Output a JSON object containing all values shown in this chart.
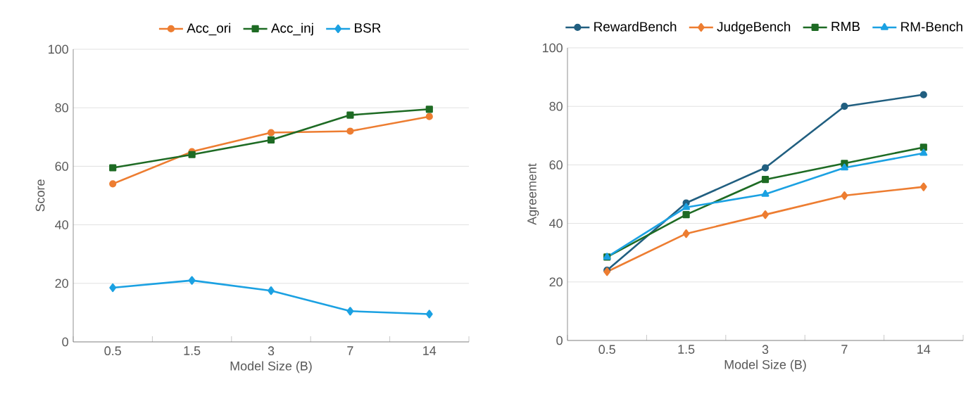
{
  "chart_data": [
    {
      "type": "line",
      "xlabel": "Model Size (B)",
      "ylabel": "Score",
      "categories": [
        "0.5",
        "1.5",
        "3",
        "7",
        "14"
      ],
      "ylim": [
        0,
        100
      ],
      "yticks": [
        0,
        20,
        40,
        60,
        80,
        100
      ],
      "grid": "y",
      "legend": "top",
      "line_style": "solid",
      "series": [
        {
          "name": "Acc_ori",
          "color": "#ed7d31",
          "marker": "circle",
          "values": [
            54,
            65,
            71.5,
            72,
            77
          ]
        },
        {
          "name": "Acc_inj",
          "color": "#1e6b24",
          "marker": "square",
          "values": [
            59.5,
            64,
            69,
            77.5,
            79.5
          ]
        },
        {
          "name": "BSR",
          "color": "#1ba1e2",
          "marker": "diamond",
          "values": [
            18.5,
            21,
            17.5,
            10.5,
            9.5
          ]
        }
      ]
    },
    {
      "type": "line",
      "xlabel": "Model Size (B)",
      "ylabel": "Agreement",
      "categories": [
        "0.5",
        "1.5",
        "3",
        "7",
        "14"
      ],
      "ylim": [
        0,
        100
      ],
      "yticks": [
        0,
        20,
        40,
        60,
        80,
        100
      ],
      "grid": "y",
      "legend": "top",
      "line_style": "solid",
      "series": [
        {
          "name": "RewardBench",
          "color": "#215f80",
          "marker": "circle",
          "values": [
            24,
            47,
            59,
            80,
            84
          ]
        },
        {
          "name": "JudgeBench",
          "color": "#ed7d31",
          "marker": "diamond",
          "values": [
            23.5,
            36.5,
            43,
            49.5,
            52.5
          ]
        },
        {
          "name": "RMB",
          "color": "#1e6b24",
          "marker": "square",
          "values": [
            28.5,
            43,
            55,
            60.5,
            66
          ]
        },
        {
          "name": "RM-Bench",
          "color": "#1ba1e2",
          "marker": "triangle",
          "values": [
            28.5,
            45.5,
            50,
            59,
            64
          ]
        }
      ]
    }
  ]
}
